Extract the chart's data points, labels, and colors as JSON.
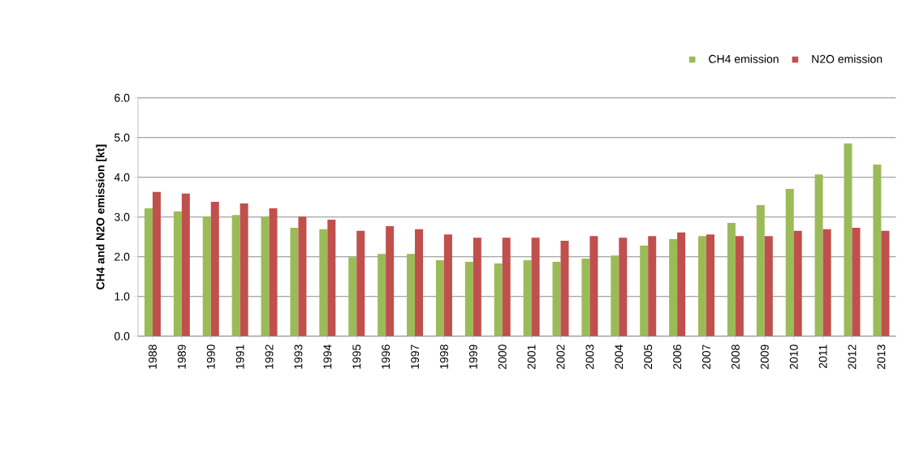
{
  "chart_data": {
    "type": "bar",
    "ylabel": "CH4 and N2O emission [kt]",
    "categories": [
      "1988",
      "1989",
      "1990",
      "1991",
      "1992",
      "1993",
      "1994",
      "1995",
      "1996",
      "1997",
      "1998",
      "1999",
      "2000",
      "2001",
      "2002",
      "2003",
      "2004",
      "2005",
      "2006",
      "2007",
      "2008",
      "2009",
      "2010",
      "2011",
      "2012",
      "2013"
    ],
    "series": [
      {
        "name": "CH4 emission",
        "color": "#9bbb59",
        "values": [
          3.22,
          3.14,
          3.01,
          3.05,
          3.01,
          2.73,
          2.69,
          1.99,
          2.07,
          2.07,
          1.91,
          1.87,
          1.83,
          1.91,
          1.87,
          1.95,
          2.03,
          2.28,
          2.44,
          2.52,
          2.85,
          3.3,
          3.71,
          4.07,
          4.85,
          4.32
        ]
      },
      {
        "name": "N2O emission",
        "color": "#c0504d",
        "values": [
          3.63,
          3.59,
          3.38,
          3.34,
          3.22,
          3.01,
          2.93,
          2.65,
          2.77,
          2.69,
          2.56,
          2.48,
          2.48,
          2.48,
          2.4,
          2.52,
          2.48,
          2.52,
          2.61,
          2.56,
          2.52,
          2.52,
          2.65,
          2.69,
          2.73,
          2.65
        ]
      }
    ],
    "ylim": [
      0,
      6
    ],
    "yticks": [
      {
        "value": 0,
        "label": "0.0"
      },
      {
        "value": 1,
        "label": "1.0"
      },
      {
        "value": 2,
        "label": "2.0"
      },
      {
        "value": 3,
        "label": "3.0"
      },
      {
        "value": 4,
        "label": "4.0"
      },
      {
        "value": 5,
        "label": "5.0"
      },
      {
        "value": 6,
        "label": "6.0"
      }
    ],
    "grid": "y",
    "legend": "top right"
  }
}
